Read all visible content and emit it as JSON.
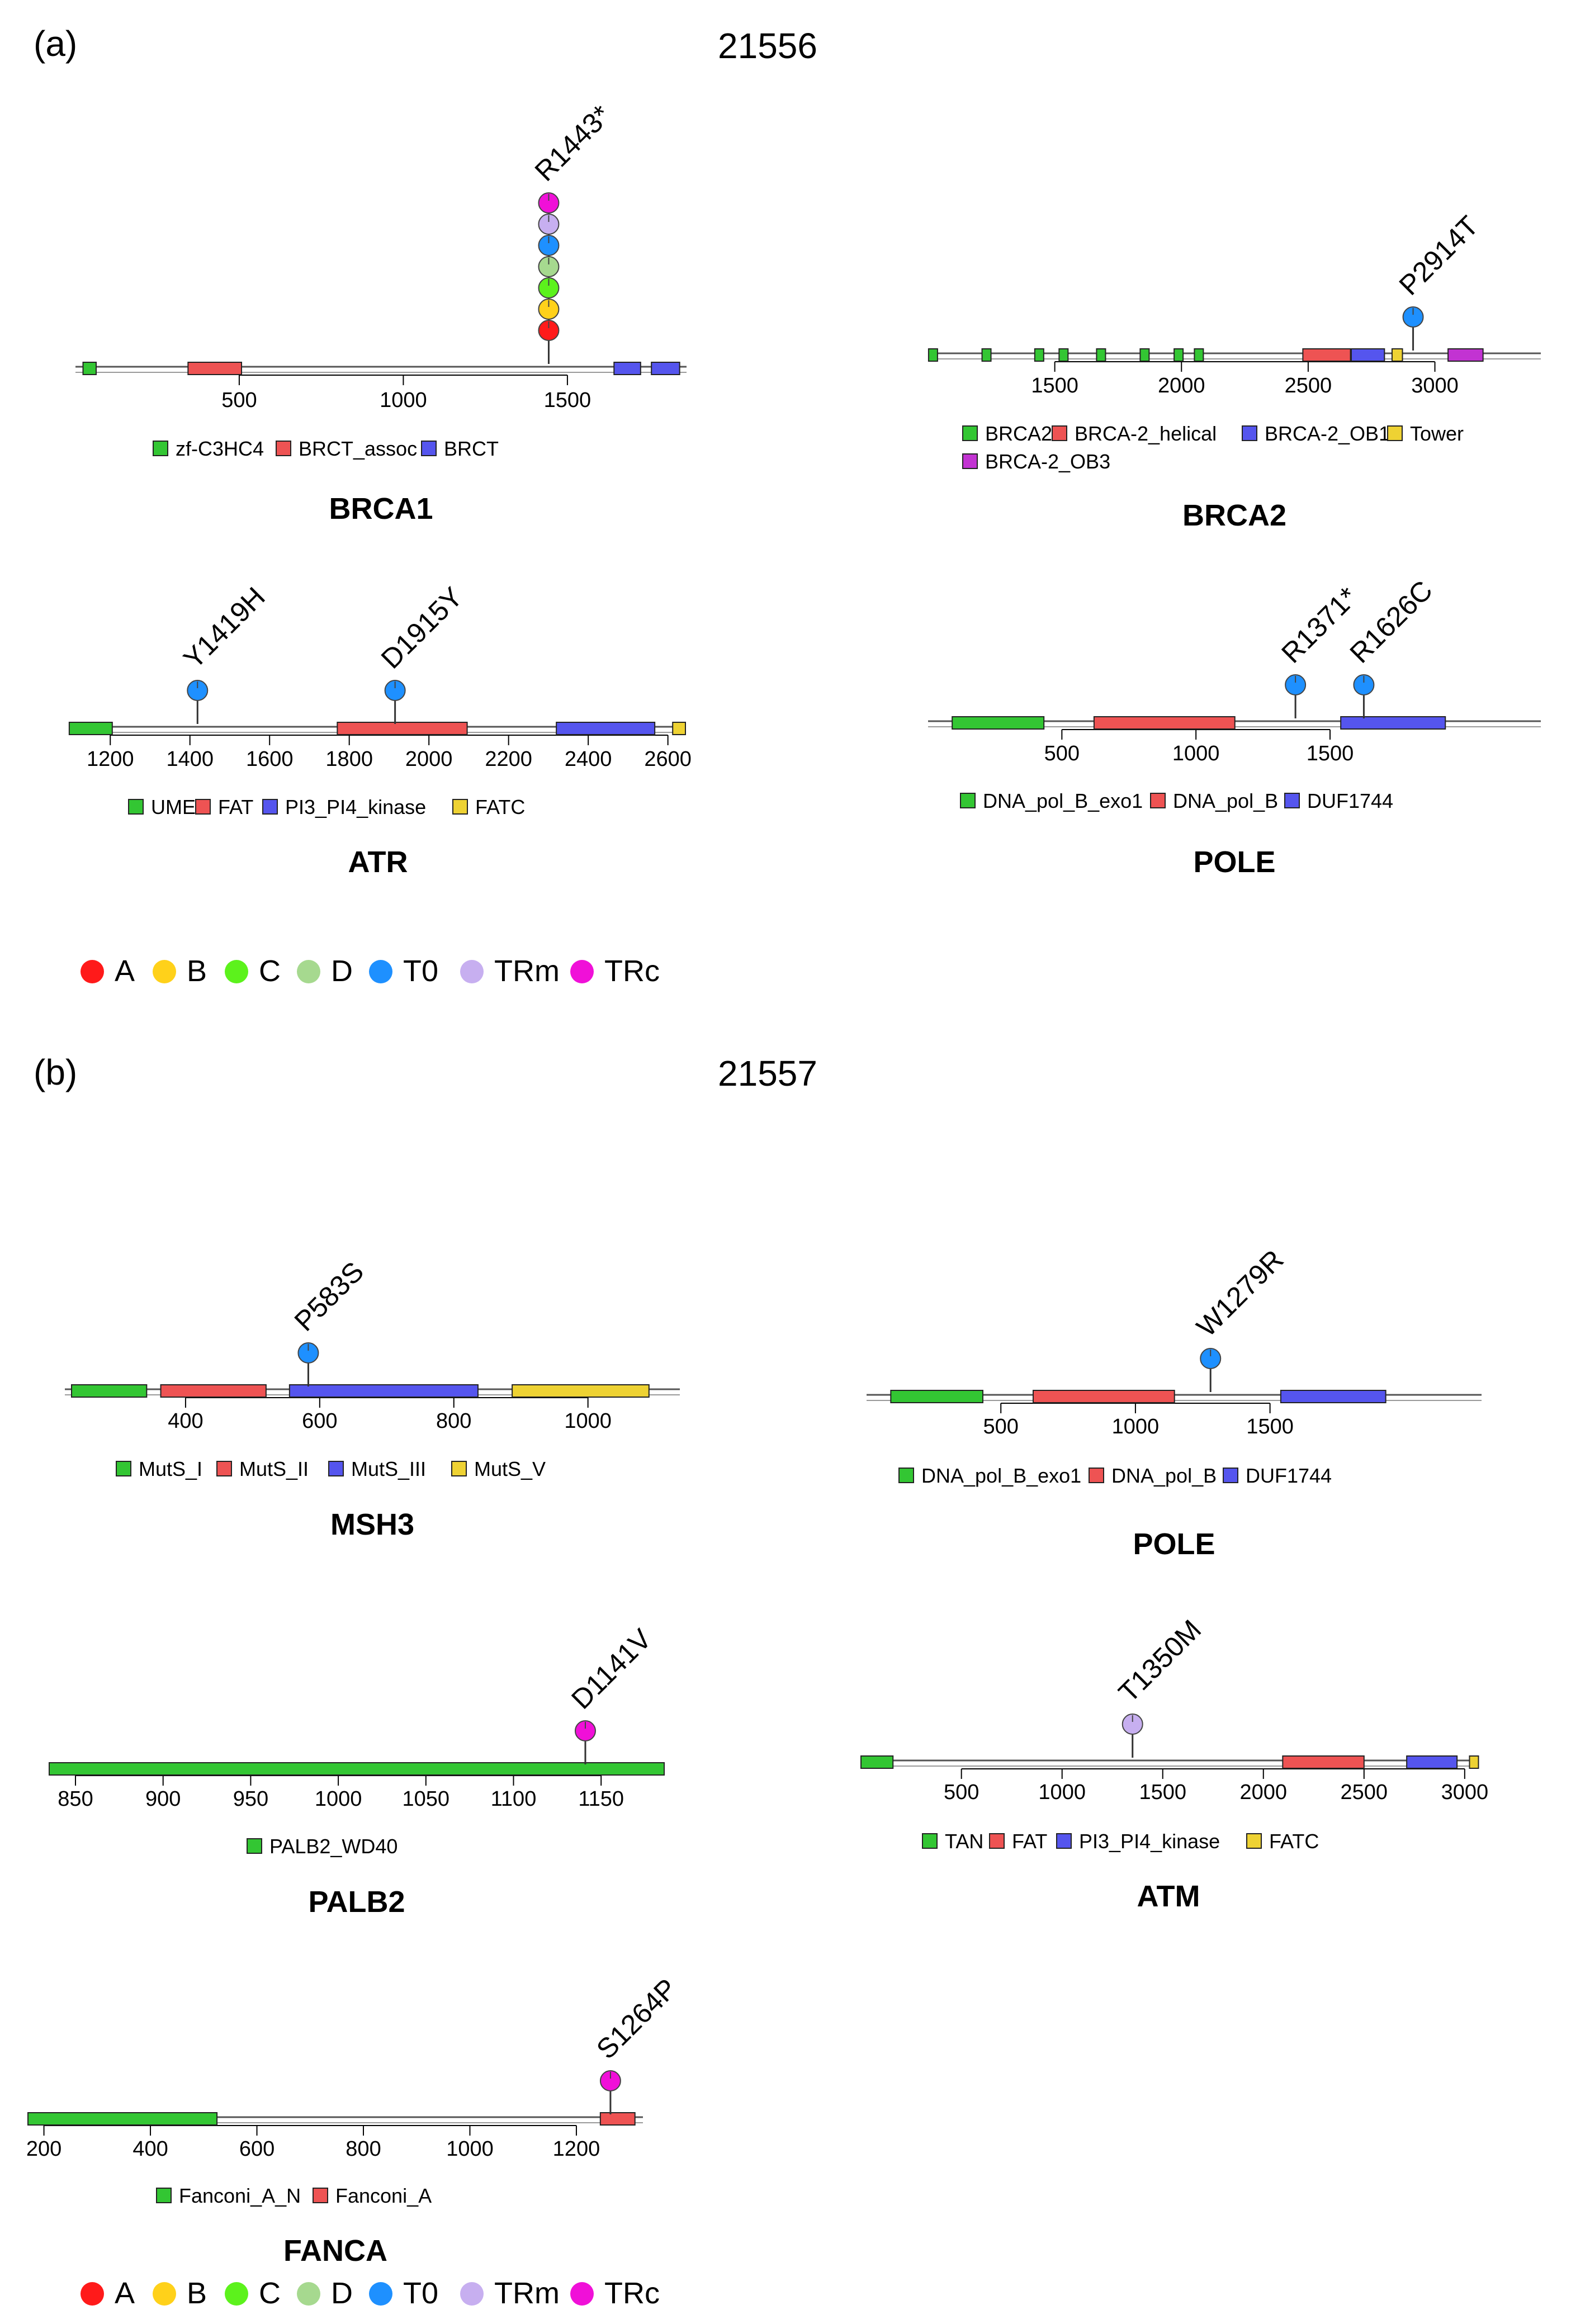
{
  "figure": {
    "panels": [
      {
        "label": "(a)",
        "sample": "21556"
      },
      {
        "label": "(b)",
        "sample": "21557"
      }
    ]
  },
  "colors": {
    "domains": {
      "green": "#33c633",
      "red": "#ee5353",
      "blue": "#5555ee",
      "yellow": "#eed233",
      "purple": "#c233d2"
    },
    "samples": {
      "A": "#ff1a1a",
      "B": "#ffd11a",
      "C": "#5cf21c",
      "D": "#a6d98f",
      "T0": "#1e90ff",
      "TRm": "#c7aff0",
      "TRc": "#f010d8"
    }
  },
  "sample_legend": [
    {
      "key": "A",
      "label": "A"
    },
    {
      "key": "B",
      "label": "B"
    },
    {
      "key": "C",
      "label": "C"
    },
    {
      "key": "D",
      "label": "D"
    },
    {
      "key": "T0",
      "label": "T0"
    },
    {
      "key": "TRm",
      "label": "TRm"
    },
    {
      "key": "TRc",
      "label": "TRc"
    }
  ],
  "chart_data": [
    {
      "type": "lollipop",
      "panel": "(a)",
      "gene": "BRCA1",
      "xlim": [
        1,
        1863
      ],
      "ticks": [
        500,
        1000,
        1500
      ],
      "domains": [
        {
          "name": "zf-C3HC4",
          "start": 24,
          "end": 64,
          "color": "green"
        },
        {
          "name": "BRCT_assoc",
          "start": 344,
          "end": 507,
          "color": "red"
        },
        {
          "name": "BRCT",
          "start": 1642,
          "end": 1723,
          "color": "blue"
        },
        {
          "name": "BRCT",
          "start": 1756,
          "end": 1842,
          "color": "blue"
        }
      ],
      "legend": [
        {
          "name": "zf-C3HC4",
          "color": "green"
        },
        {
          "name": "BRCT_assoc",
          "color": "red"
        },
        {
          "name": "BRCT",
          "color": "blue"
        }
      ],
      "mutations": [
        {
          "label": "R1443*",
          "pos": 1443,
          "samples": [
            "A",
            "B",
            "C",
            "D",
            "T0",
            "TRm",
            "TRc"
          ]
        }
      ]
    },
    {
      "type": "lollipop",
      "panel": "(a)",
      "gene": "BRCA2",
      "xlim": [
        1000,
        3418
      ],
      "ticks": [
        1500,
        2000,
        2500,
        3000
      ],
      "domains": [
        {
          "name": "BRCA2",
          "start": 1002,
          "end": 1036,
          "color": "green"
        },
        {
          "name": "BRCA2",
          "start": 1213,
          "end": 1247,
          "color": "green"
        },
        {
          "name": "BRCA2",
          "start": 1421,
          "end": 1455,
          "color": "green"
        },
        {
          "name": "BRCA2",
          "start": 1517,
          "end": 1551,
          "color": "green"
        },
        {
          "name": "BRCA2",
          "start": 1665,
          "end": 1699,
          "color": "green"
        },
        {
          "name": "BRCA2",
          "start": 1837,
          "end": 1871,
          "color": "green"
        },
        {
          "name": "BRCA2",
          "start": 1971,
          "end": 2005,
          "color": "green"
        },
        {
          "name": "BRCA2",
          "start": 2051,
          "end": 2085,
          "color": "green"
        },
        {
          "name": "BRCA-2_helical",
          "start": 2479,
          "end": 2667,
          "color": "red"
        },
        {
          "name": "BRCA-2_OB1",
          "start": 2670,
          "end": 2801,
          "color": "blue"
        },
        {
          "name": "Tower",
          "start": 2831,
          "end": 2872,
          "color": "yellow"
        },
        {
          "name": "BRCA-2_OB3",
          "start": 3052,
          "end": 3190,
          "color": "purple"
        }
      ],
      "legend": [
        {
          "name": "BRCA2",
          "color": "green"
        },
        {
          "name": "BRCA-2_helical",
          "color": "red"
        },
        {
          "name": "BRCA-2_OB1",
          "color": "blue"
        },
        {
          "name": "Tower",
          "color": "yellow"
        },
        {
          "name": "BRCA-2_OB3",
          "color": "purple"
        }
      ],
      "mutations": [
        {
          "label": "P2914T",
          "pos": 2914,
          "samples": [
            "T0"
          ]
        }
      ]
    },
    {
      "type": "lollipop",
      "panel": "(a)",
      "gene": "ATR",
      "xlim": [
        1100,
        2644
      ],
      "ticks": [
        1200,
        1400,
        1600,
        1800,
        2000,
        2200,
        2400,
        2600
      ],
      "domains": [
        {
          "name": "UME",
          "start": 1097,
          "end": 1205,
          "color": "green"
        },
        {
          "name": "FAT",
          "start": 1770,
          "end": 2096,
          "color": "red"
        },
        {
          "name": "PI3_PI4_kinase",
          "start": 2320,
          "end": 2567,
          "color": "blue"
        },
        {
          "name": "FATC",
          "start": 2612,
          "end": 2644,
          "color": "yellow"
        }
      ],
      "legend": [
        {
          "name": "UME",
          "color": "green"
        },
        {
          "name": "FAT",
          "color": "red"
        },
        {
          "name": "PI3_PI4_kinase",
          "color": "blue"
        },
        {
          "name": "FATC",
          "color": "yellow"
        }
      ],
      "mutations": [
        {
          "label": "Y1419H",
          "pos": 1419,
          "samples": [
            "T0"
          ]
        },
        {
          "label": "D1915Y",
          "pos": 1915,
          "samples": [
            "T0"
          ]
        }
      ]
    },
    {
      "type": "lollipop",
      "panel": "(a)",
      "gene": "POLE",
      "xlim": [
        1,
        2286
      ],
      "ticks": [
        500,
        1000,
        1500
      ],
      "domains": [
        {
          "name": "DNA_pol_B_exo1",
          "start": 91,
          "end": 433,
          "color": "green"
        },
        {
          "name": "DNA_pol_B",
          "start": 620,
          "end": 1145,
          "color": "red"
        },
        {
          "name": "DUF1744",
          "start": 1540,
          "end": 1930,
          "color": "blue"
        }
      ],
      "legend": [
        {
          "name": "DNA_pol_B_exo1",
          "color": "green"
        },
        {
          "name": "DNA_pol_B",
          "color": "red"
        },
        {
          "name": "DUF1744",
          "color": "blue"
        }
      ],
      "mutations": [
        {
          "label": "R1371*",
          "pos": 1371,
          "samples": [
            "T0"
          ]
        },
        {
          "label": "R1626C",
          "pos": 1626,
          "samples": [
            "T0"
          ]
        }
      ]
    },
    {
      "type": "lollipop",
      "panel": "(b)",
      "gene": "MSH3",
      "xlim": [
        220,
        1137
      ],
      "ticks": [
        400,
        600,
        800,
        1000
      ],
      "domains": [
        {
          "name": "MutS_I",
          "start": 230,
          "end": 342,
          "color": "green"
        },
        {
          "name": "MutS_II",
          "start": 363,
          "end": 520,
          "color": "red"
        },
        {
          "name": "MutS_III",
          "start": 555,
          "end": 836,
          "color": "blue"
        },
        {
          "name": "MutS_V",
          "start": 887,
          "end": 1091,
          "color": "yellow"
        }
      ],
      "legend": [
        {
          "name": "MutS_I",
          "color": "green"
        },
        {
          "name": "MutS_II",
          "color": "red"
        },
        {
          "name": "MutS_III",
          "color": "blue"
        },
        {
          "name": "MutS_V",
          "color": "yellow"
        }
      ],
      "mutations": [
        {
          "label": "P583S",
          "pos": 583,
          "samples": [
            "T0"
          ]
        }
      ]
    },
    {
      "type": "lollipop",
      "panel": "(b)",
      "gene": "POLE",
      "xlim": [
        1,
        2286
      ],
      "ticks": [
        500,
        1000,
        1500
      ],
      "domains": [
        {
          "name": "DNA_pol_B_exo1",
          "start": 91,
          "end": 433,
          "color": "green"
        },
        {
          "name": "DNA_pol_B",
          "start": 620,
          "end": 1145,
          "color": "red"
        },
        {
          "name": "DUF1744",
          "start": 1540,
          "end": 1930,
          "color": "blue"
        }
      ],
      "legend": [
        {
          "name": "DNA_pol_B_exo1",
          "color": "green"
        },
        {
          "name": "DNA_pol_B",
          "color": "red"
        },
        {
          "name": "DUF1744",
          "color": "blue"
        }
      ],
      "mutations": [
        {
          "label": "W1279R",
          "pos": 1279,
          "samples": [
            "T0"
          ]
        }
      ]
    },
    {
      "type": "lollipop",
      "panel": "(b)",
      "gene": "PALB2",
      "xlim": [
        835,
        1186
      ],
      "ticks": [
        850,
        900,
        950,
        1000,
        1050,
        1100,
        1150
      ],
      "domains": [
        {
          "name": "PALB2_WD40",
          "start": 835,
          "end": 1186,
          "color": "green"
        }
      ],
      "legend": [
        {
          "name": "PALB2_WD40",
          "color": "green"
        }
      ],
      "mutations": [
        {
          "label": "D1141V",
          "pos": 1141,
          "samples": [
            "TRc"
          ]
        }
      ]
    },
    {
      "type": "lollipop",
      "panel": "(b)",
      "gene": "ATM",
      "xlim": [
        1,
        3056
      ],
      "ticks": [
        500,
        1000,
        1500,
        2000,
        2500,
        3000
      ],
      "domains": [
        {
          "name": "TAN",
          "start": 1,
          "end": 160,
          "color": "green"
        },
        {
          "name": "FAT",
          "start": 2096,
          "end": 2500,
          "color": "red"
        },
        {
          "name": "PI3_PI4_kinase",
          "start": 2712,
          "end": 2962,
          "color": "blue"
        },
        {
          "name": "FATC",
          "start": 3024,
          "end": 3056,
          "color": "yellow"
        }
      ],
      "legend": [
        {
          "name": "TAN",
          "color": "green"
        },
        {
          "name": "FAT",
          "color": "red"
        },
        {
          "name": "PI3_PI4_kinase",
          "color": "blue"
        },
        {
          "name": "FATC",
          "color": "yellow"
        }
      ],
      "mutations": [
        {
          "label": "T1350M",
          "pos": 1350,
          "samples": [
            "TRm"
          ]
        }
      ]
    },
    {
      "type": "lollipop",
      "panel": "(b)",
      "gene": "FANCA",
      "xlim": [
        170,
        1325
      ],
      "ticks": [
        200,
        400,
        600,
        800,
        1000,
        1200
      ],
      "domains": [
        {
          "name": "Fanconi_A_N",
          "start": 170,
          "end": 525,
          "color": "green"
        },
        {
          "name": "Fanconi_A",
          "start": 1245,
          "end": 1310,
          "color": "red"
        }
      ],
      "legend": [
        {
          "name": "Fanconi_A_N",
          "color": "green"
        },
        {
          "name": "Fanconi_A",
          "color": "red"
        }
      ],
      "mutations": [
        {
          "label": "S1264P",
          "pos": 1264,
          "samples": [
            "TRc"
          ]
        }
      ]
    }
  ]
}
